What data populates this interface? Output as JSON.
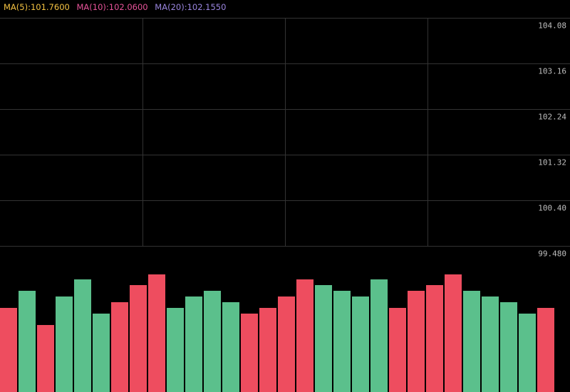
{
  "legend": {
    "ma5": "MA(5):101.7600",
    "ma10": "MA(10):102.0600",
    "ma20": "MA(20):102.1550"
  },
  "colors": {
    "ma5": "#f5c342",
    "ma10": "#e8549a",
    "ma20": "#9b86e0",
    "up": "#5bc08c",
    "down": "#ee4d5f",
    "grid": "#333333",
    "axis_text": "#bdbdbd",
    "background": "#000000"
  },
  "chart_data": {
    "type": "bar",
    "price_axis": {
      "tick_labels": [
        "104.08",
        "103.16",
        "102.24",
        "101.32",
        "100.40",
        "99.480"
      ],
      "ylim": [
        99.48,
        104.08
      ]
    },
    "grid": true,
    "volume": {
      "bar_count": 30,
      "values": [
        118,
        142,
        94,
        134,
        158,
        110,
        126,
        150,
        165,
        118,
        134,
        142,
        126,
        110,
        118,
        134,
        158,
        150,
        142,
        134,
        158,
        118,
        142,
        150,
        165,
        142,
        134,
        126,
        110,
        118
      ],
      "direction": [
        "down",
        "up",
        "down",
        "up",
        "up",
        "up",
        "down",
        "down",
        "down",
        "up",
        "up",
        "up",
        "up",
        "down",
        "down",
        "down",
        "down",
        "up",
        "up",
        "up",
        "up",
        "down",
        "down",
        "down",
        "down",
        "up",
        "up",
        "up",
        "up",
        "down"
      ]
    }
  }
}
